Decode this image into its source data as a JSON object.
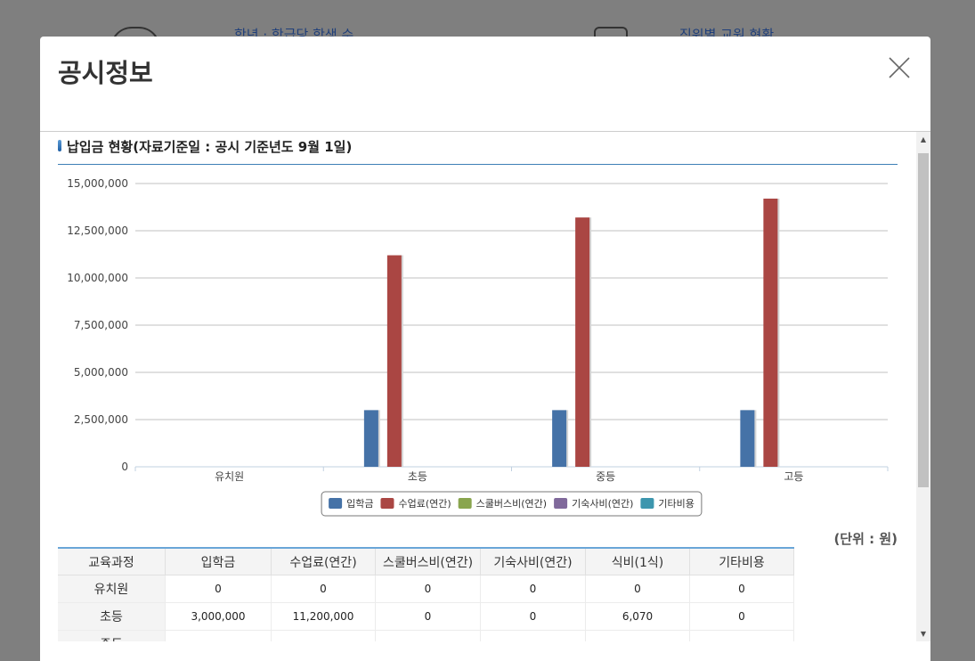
{
  "background": {
    "link1": "학년 · 학급당 학생 수",
    "link2": "직위별 교원 현황"
  },
  "modal": {
    "title": "공시정보",
    "close_icon": "close-icon"
  },
  "section": {
    "title": "납입금 현황(자료기준일 : 공시 기준년도 9월 1일)"
  },
  "chart_data": {
    "type": "bar",
    "categories": [
      "유치원",
      "초등",
      "중등",
      "고등"
    ],
    "series": [
      {
        "name": "입학금",
        "color": "#4572a7",
        "values": [
          0,
          3000000,
          3000000,
          3000000
        ]
      },
      {
        "name": "수업료(연간)",
        "color": "#aa4643",
        "values": [
          0,
          11200000,
          13200000,
          14200000
        ]
      },
      {
        "name": "스쿨버스비(연간)",
        "color": "#89a54e",
        "values": [
          0,
          0,
          0,
          0
        ]
      },
      {
        "name": "기숙사비(연간)",
        "color": "#80699b",
        "values": [
          0,
          0,
          0,
          0
        ]
      },
      {
        "name": "기타비용",
        "color": "#3d96ae",
        "values": [
          0,
          0,
          0,
          0
        ]
      }
    ],
    "y_ticks": [
      "0",
      "2,500,000",
      "5,000,000",
      "7,500,000",
      "10,000,000",
      "12,500,000",
      "15,000,000"
    ],
    "ylim": [
      0,
      15000000
    ],
    "grid": true,
    "legend_position": "bottom-center"
  },
  "table": {
    "unit": "(단위 : 원)",
    "headers": [
      "교육과정",
      "입학금",
      "수업료(연간)",
      "스쿨버스비(연간)",
      "기숙사비(연간)",
      "식비(1식)",
      "기타비용"
    ],
    "rows": [
      {
        "label": "유치원",
        "cells": [
          "0",
          "0",
          "0",
          "0",
          "0",
          "0"
        ]
      },
      {
        "label": "초등",
        "cells": [
          "3,000,000",
          "11,200,000",
          "0",
          "0",
          "6,070",
          "0"
        ]
      },
      {
        "label": "중등",
        "cells": [
          "",
          "",
          "",
          "",
          "",
          ""
        ]
      }
    ]
  },
  "scrollbar": {
    "up_glyph": "▲",
    "down_glyph": "▼"
  }
}
